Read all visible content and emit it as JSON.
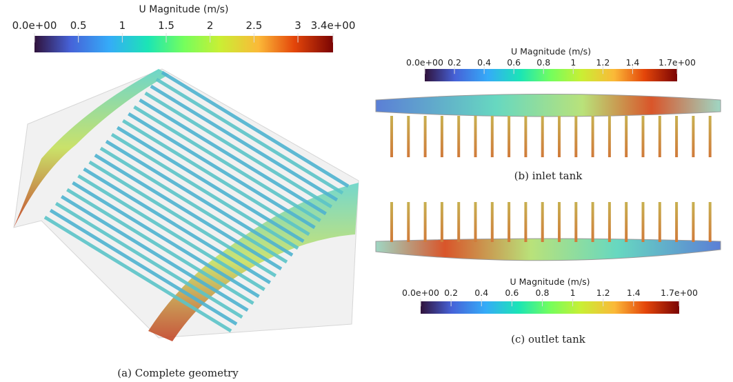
{
  "colorbars": [
    {
      "title": "U Magnitude (m/s)",
      "range": [
        0,
        3.4
      ],
      "ticks": [
        {
          "value": 0,
          "label": "0.0e+00"
        },
        0.5,
        1,
        1.5,
        2,
        2.5,
        3,
        {
          "value": 3.4,
          "label": "3.4e+00"
        }
      ]
    },
    {
      "title": "U Magnitude (m/s)",
      "range": [
        0,
        1.7
      ],
      "ticks": [
        {
          "value": 0,
          "label": "0.0e+00"
        },
        0.2,
        0.4,
        0.6,
        0.8,
        1,
        1.2,
        1.4,
        {
          "value": 1.7,
          "label": "1.7e+00"
        }
      ]
    },
    {
      "title": "U Magnitude (m/s)",
      "range": [
        0,
        1.7
      ],
      "ticks": [
        {
          "value": 0,
          "label": "0.0e+00"
        },
        0.2,
        0.4,
        0.6,
        0.8,
        1,
        1.2,
        1.4,
        {
          "value": 1.7,
          "label": "1.7e+00"
        }
      ]
    }
  ],
  "captions": {
    "a": "(a)  Complete geometry",
    "b": "(b)  inlet tank",
    "c": "(c)  outlet tank"
  }
}
